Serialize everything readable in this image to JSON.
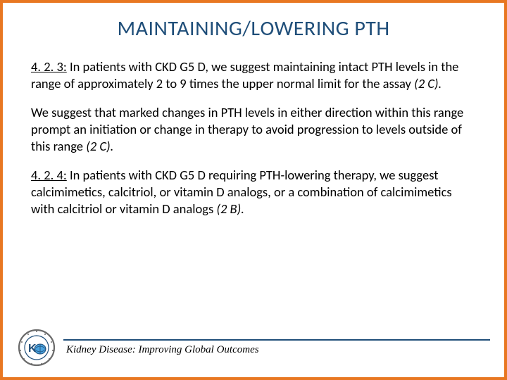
{
  "title_html": "M<span class='sc'>AINTAINING</span>/L<span class='sc'>OWERING</span> PTH",
  "paragraphs": [
    {
      "num": "4. 2. 3:",
      "text": " In patients with CKD G5 D, we suggest maintaining intact PTH levels in the range of approximately 2 to 9 times the upper normal limit for the assay ",
      "grade": "(2 C)."
    },
    {
      "num": "",
      "text": "We suggest that marked changes in PTH levels in either direction within this range prompt an initiation or change in therapy to avoid progression to levels outside of this range ",
      "grade": "(2 C)."
    },
    {
      "num": "4. 2. 4:",
      "text": " In patients with CKD G5 D requiring PTH-lowering therapy, we suggest calcimimetics, calcitriol, or vitamin D analogs, or a combination of calcimimetics with calcitriol or vitamin D analogs ",
      "grade": "(2 B)."
    }
  ],
  "footer_text": "Kidney Disease: Improving Global Outcomes",
  "colors": {
    "border": "#e87722",
    "title": "#1f4e79",
    "text": "#000000",
    "footer_line": "#1f4e79"
  },
  "logo": {
    "name": "kdigo-seal-icon",
    "outer_text": "KIDNEY DISEASE IMPROVING GLOBAL OUTCOMES"
  }
}
